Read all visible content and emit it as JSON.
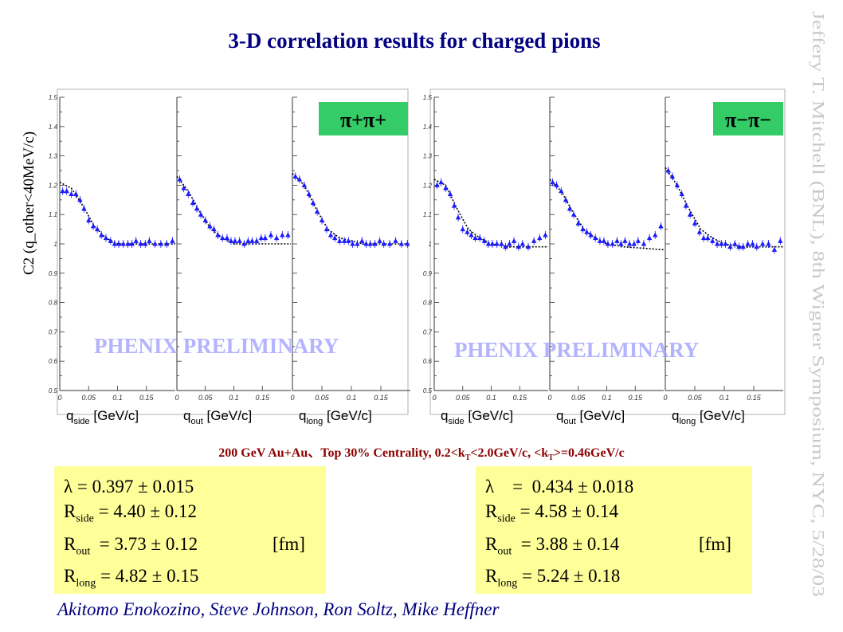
{
  "title": "3-D correlation results for charged pions",
  "side_credit": "Jeffery T. Mitchell (BNL), 8th Wigner Symposium, NYC, 5/28/03",
  "y_axis_label": "C2 (q_other<40MeV/c)",
  "watermark": "PHENIX PRELIMINARY",
  "caption": {
    "prefix": "200 GeV Au+Au、Top 30% Centrality, 0.2<k",
    "sub1": "T",
    "middle": "<2.0GeV/c, <k",
    "sub2": "T",
    "suffix": ">=0.46GeV/c"
  },
  "authors": "Akitomo Enokozino, Steve Johnson, Ron Soltz, Mike Heffner",
  "colors": {
    "title": "#000080",
    "marker": "#1a1aff",
    "fit": "#000000",
    "badge": "#33cc66",
    "box": "#ffff99",
    "caption": "#8b0000"
  },
  "results": [
    {
      "label": "π+π+",
      "lambda": "λ   = 0.397 ± 0.015",
      "r_side_prefix": "R",
      "r_side_sub": "side",
      "r_side_val": " = 4.40 ± 0.12",
      "r_out_prefix": "R",
      "r_out_sub": "out",
      "r_out_val": "  = 3.73 ± 0.12",
      "unit": "[fm]",
      "r_long_prefix": "R",
      "r_long_sub": "long",
      "r_long_val": " = 4.82 ± 0.15"
    },
    {
      "label": "π−π−",
      "lambda": "λ    =  0.434 ± 0.018",
      "r_side_prefix": "R",
      "r_side_sub": "side",
      "r_side_val": " = 4.58 ± 0.14",
      "r_out_prefix": "R",
      "r_out_sub": "out",
      "r_out_val": "  = 3.88 ± 0.14",
      "unit": "[fm]",
      "r_long_prefix": "R",
      "r_long_sub": "long",
      "r_long_val": " = 5.24 ± 0.18"
    }
  ],
  "chart_data": {
    "type": "scatter",
    "ylim": [
      0.5,
      1.5
    ],
    "y_ticks": [
      "1.5",
      "1.4",
      "1.3",
      "1.2",
      "1.1",
      "1",
      "0.9",
      "0.8",
      "0.7",
      "0.6",
      "0.5"
    ],
    "x_ticks": [
      "0",
      "0.05",
      "0.1",
      "0.15"
    ],
    "xlim": [
      0,
      0.2
    ],
    "panel_xlabels": [
      {
        "q": "q",
        "sub": "side",
        "unit": "[GeV/c]"
      },
      {
        "q": "q",
        "sub": "out",
        "unit": "[GeV/c]"
      },
      {
        "q": "q",
        "sub": "long",
        "unit": "[GeV/c]"
      }
    ],
    "groups": [
      {
        "name": "π+π+",
        "panels": [
          {
            "x": [
              0.005,
              0.012,
              0.02,
              0.028,
              0.035,
              0.042,
              0.05,
              0.058,
              0.065,
              0.072,
              0.08,
              0.088,
              0.095,
              0.102,
              0.11,
              0.118,
              0.125,
              0.132,
              0.14,
              0.148,
              0.155,
              0.165,
              0.175,
              0.185,
              0.195
            ],
            "y": [
              1.18,
              1.18,
              1.17,
              1.17,
              1.15,
              1.12,
              1.08,
              1.06,
              1.05,
              1.03,
              1.02,
              1.01,
              1.0,
              1.0,
              1.0,
              1.0,
              1.0,
              1.01,
              1.0,
              1.0,
              1.01,
              1.0,
              1.0,
              1.0,
              1.01
            ],
            "fit": [
              [
                0,
                1.21
              ],
              [
                0.02,
                1.19
              ],
              [
                0.04,
                1.13
              ],
              [
                0.06,
                1.06
              ],
              [
                0.08,
                1.02
              ],
              [
                0.1,
                1.0
              ],
              [
                0.12,
                1.0
              ],
              [
                0.2,
                1.0
              ]
            ]
          },
          {
            "x": [
              0.005,
              0.012,
              0.02,
              0.028,
              0.035,
              0.042,
              0.05,
              0.058,
              0.065,
              0.072,
              0.08,
              0.088,
              0.095,
              0.102,
              0.11,
              0.118,
              0.125,
              0.132,
              0.14,
              0.148,
              0.155,
              0.165,
              0.175,
              0.185,
              0.195
            ],
            "y": [
              1.22,
              1.19,
              1.17,
              1.14,
              1.12,
              1.1,
              1.08,
              1.06,
              1.05,
              1.03,
              1.02,
              1.02,
              1.01,
              1.01,
              1.01,
              1.0,
              1.01,
              1.01,
              1.01,
              1.02,
              1.02,
              1.03,
              1.02,
              1.03,
              1.03
            ],
            "fit": [
              [
                0,
                1.23
              ],
              [
                0.02,
                1.18
              ],
              [
                0.04,
                1.11
              ],
              [
                0.06,
                1.05
              ],
              [
                0.08,
                1.02
              ],
              [
                0.1,
                1.0
              ],
              [
                0.12,
                1.0
              ],
              [
                0.2,
                1.0
              ]
            ]
          },
          {
            "x": [
              0.005,
              0.012,
              0.02,
              0.028,
              0.035,
              0.042,
              0.05,
              0.058,
              0.065,
              0.072,
              0.08,
              0.088,
              0.095,
              0.102,
              0.11,
              0.118,
              0.125,
              0.132,
              0.14,
              0.148,
              0.155,
              0.165,
              0.175,
              0.185,
              0.195
            ],
            "y": [
              1.23,
              1.22,
              1.2,
              1.17,
              1.14,
              1.11,
              1.08,
              1.05,
              1.03,
              1.02,
              1.01,
              1.01,
              1.01,
              1.0,
              1.0,
              1.01,
              1.0,
              1.0,
              1.0,
              1.01,
              1.0,
              1.0,
              1.01,
              1.0,
              1.0
            ],
            "fit": [
              [
                0,
                1.24
              ],
              [
                0.02,
                1.2
              ],
              [
                0.04,
                1.12
              ],
              [
                0.06,
                1.05
              ],
              [
                0.08,
                1.02
              ],
              [
                0.1,
                1.01
              ],
              [
                0.12,
                1.0
              ],
              [
                0.2,
                1.0
              ]
            ]
          }
        ]
      },
      {
        "name": "π−π−",
        "panels": [
          {
            "x": [
              0.005,
              0.012,
              0.02,
              0.028,
              0.035,
              0.042,
              0.05,
              0.058,
              0.065,
              0.072,
              0.08,
              0.088,
              0.095,
              0.102,
              0.11,
              0.118,
              0.125,
              0.132,
              0.14,
              0.148,
              0.155,
              0.165,
              0.175,
              0.185,
              0.195
            ],
            "y": [
              1.2,
              1.21,
              1.19,
              1.17,
              1.13,
              1.09,
              1.05,
              1.04,
              1.03,
              1.02,
              1.02,
              1.01,
              1.0,
              1.0,
              1.0,
              1.0,
              0.99,
              1.0,
              1.01,
              0.99,
              1.0,
              0.99,
              1.01,
              1.02,
              1.03
            ],
            "fit": [
              [
                0,
                1.22
              ],
              [
                0.02,
                1.2
              ],
              [
                0.04,
                1.12
              ],
              [
                0.06,
                1.05
              ],
              [
                0.08,
                1.02
              ],
              [
                0.1,
                1.0
              ],
              [
                0.13,
                0.99
              ],
              [
                0.2,
                0.99
              ]
            ]
          },
          {
            "x": [
              0.005,
              0.012,
              0.02,
              0.028,
              0.035,
              0.042,
              0.05,
              0.058,
              0.065,
              0.072,
              0.08,
              0.088,
              0.095,
              0.102,
              0.11,
              0.118,
              0.125,
              0.132,
              0.14,
              0.148,
              0.155,
              0.165,
              0.175,
              0.185,
              0.195
            ],
            "y": [
              1.21,
              1.2,
              1.18,
              1.15,
              1.12,
              1.1,
              1.07,
              1.05,
              1.04,
              1.03,
              1.02,
              1.01,
              1.01,
              1.0,
              1.0,
              1.01,
              1.0,
              1.01,
              1.0,
              1.0,
              1.01,
              1.0,
              1.02,
              1.03,
              1.06
            ],
            "fit": [
              [
                0,
                1.22
              ],
              [
                0.02,
                1.18
              ],
              [
                0.04,
                1.11
              ],
              [
                0.06,
                1.05
              ],
              [
                0.08,
                1.02
              ],
              [
                0.1,
                1.0
              ],
              [
                0.13,
                0.99
              ],
              [
                0.2,
                0.98
              ]
            ]
          },
          {
            "x": [
              0.005,
              0.012,
              0.02,
              0.028,
              0.035,
              0.042,
              0.05,
              0.058,
              0.065,
              0.072,
              0.08,
              0.088,
              0.095,
              0.102,
              0.11,
              0.118,
              0.125,
              0.132,
              0.14,
              0.148,
              0.155,
              0.165,
              0.175,
              0.185,
              0.195
            ],
            "y": [
              1.25,
              1.23,
              1.2,
              1.17,
              1.13,
              1.1,
              1.07,
              1.04,
              1.02,
              1.02,
              1.01,
              1.0,
              1.0,
              1.0,
              0.99,
              1.0,
              0.99,
              0.99,
              1.0,
              1.0,
              0.99,
              1.0,
              1.0,
              0.98,
              1.01
            ],
            "fit": [
              [
                0,
                1.26
              ],
              [
                0.02,
                1.2
              ],
              [
                0.04,
                1.12
              ],
              [
                0.06,
                1.05
              ],
              [
                0.08,
                1.02
              ],
              [
                0.1,
                1.0
              ],
              [
                0.13,
                0.99
              ],
              [
                0.2,
                0.99
              ]
            ]
          }
        ]
      }
    ]
  }
}
